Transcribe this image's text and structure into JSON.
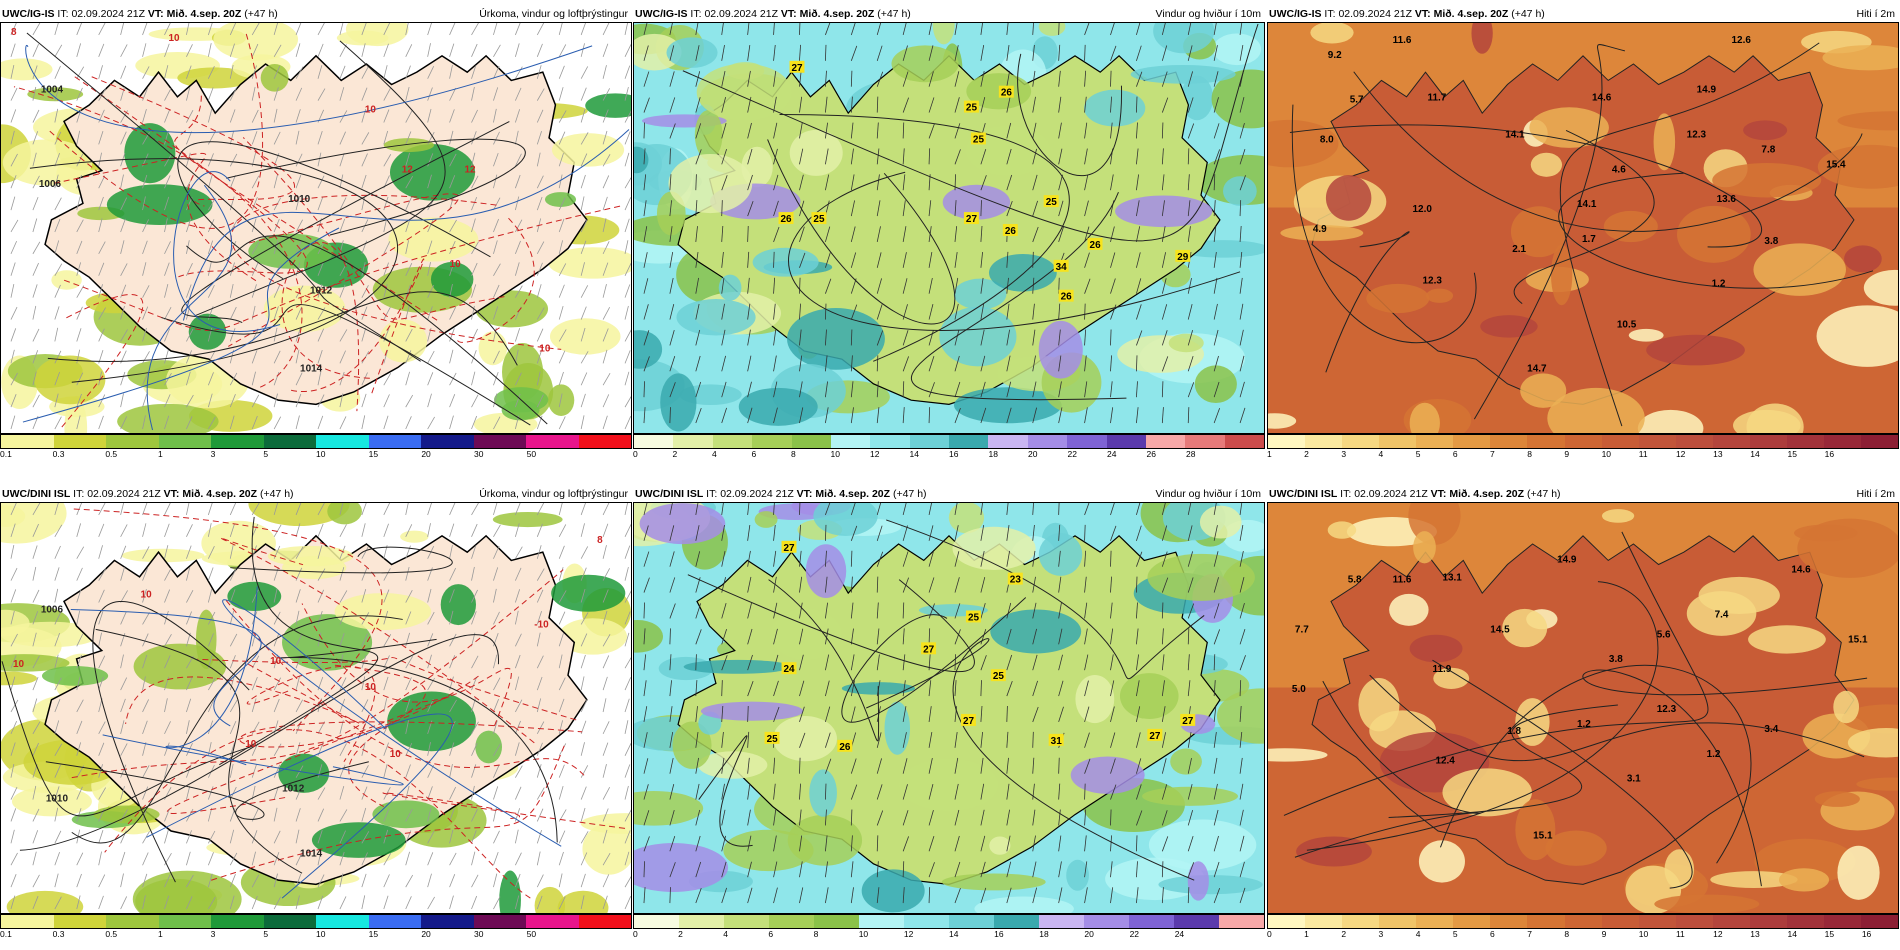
{
  "panels": [
    {
      "model": "UWC/IG-IS",
      "it_label": "IT:",
      "it": "02.09.2024 21Z",
      "vt_label": "VT:",
      "vt": "Mið. 4.sep. 20Z",
      "lead": "(+47 h)",
      "title": "Úrkoma, vindur og loftþrýstingur",
      "type": "precip",
      "legend_ticks": [
        "0.1",
        "0.3",
        "0.5",
        "1",
        "3",
        "5",
        "10",
        "15",
        "20",
        "30",
        "50"
      ],
      "legend_colors": [
        "#f6f59e",
        "#cfd43a",
        "#9ec63d",
        "#6fbf4a",
        "#1f9a39",
        "#0c6b3b",
        "#17e8e0",
        "#3a6cf2",
        "#141a8a",
        "#6d0a55",
        "#e8158c",
        "#f20f1b"
      ],
      "map_labels": [
        {
          "text": "8",
          "color": "#cc2222"
        },
        {
          "text": "10",
          "color": "#cc2222"
        },
        {
          "text": "10",
          "color": "#cc2222"
        },
        {
          "text": "12",
          "color": "#cc2222"
        },
        {
          "text": "12",
          "color": "#cc2222"
        },
        {
          "text": "10",
          "color": "#cc2222"
        },
        {
          "text": "10",
          "color": "#cc2222"
        },
        {
          "text": "1004",
          "color": "#222"
        },
        {
          "text": "1006",
          "color": "#222"
        },
        {
          "text": "1010",
          "color": "#222"
        },
        {
          "text": "1012",
          "color": "#222"
        },
        {
          "text": "1014",
          "color": "#222"
        }
      ]
    },
    {
      "model": "UWC/IG-IS",
      "it_label": "IT:",
      "it": "02.09.2024 21Z",
      "vt_label": "VT:",
      "vt": "Mið. 4.sep. 20Z",
      "lead": "(+47 h)",
      "title": "Vindur og hviður í 10m",
      "type": "wind",
      "legend_ticks": [
        "0",
        "2",
        "4",
        "6",
        "8",
        "10",
        "12",
        "14",
        "16",
        "18",
        "20",
        "22",
        "24",
        "26",
        "28"
      ],
      "legend_colors": [
        "#f7fbe0",
        "#e3f0a8",
        "#c4e07a",
        "#a6cf58",
        "#8bc249",
        "#b3f4f4",
        "#8fe6ea",
        "#6dd0d6",
        "#3aa9ae",
        "#c9b6f2",
        "#a48de6",
        "#7f63d4",
        "#5b3aac",
        "#f7a8a8",
        "#e67a7a",
        "#cc4c4c"
      ],
      "map_labels": [
        {
          "text": "27",
          "color": "#000"
        },
        {
          "text": "25",
          "color": "#000"
        },
        {
          "text": "26",
          "color": "#000"
        },
        {
          "text": "25",
          "color": "#000"
        },
        {
          "text": "26",
          "color": "#000"
        },
        {
          "text": "25",
          "color": "#000"
        },
        {
          "text": "27",
          "color": "#000"
        },
        {
          "text": "26",
          "color": "#000"
        },
        {
          "text": "25",
          "color": "#000"
        },
        {
          "text": "34",
          "color": "#000"
        },
        {
          "text": "26",
          "color": "#000"
        },
        {
          "text": "29",
          "color": "#000"
        },
        {
          "text": "26",
          "color": "#000"
        }
      ]
    },
    {
      "model": "UWC/IG-IS",
      "it_label": "IT:",
      "it": "02.09.2024 21Z",
      "vt_label": "VT:",
      "vt": "Mið. 4.sep. 20Z",
      "lead": "(+47 h)",
      "title": "Hiti í 2m",
      "type": "temp",
      "legend_ticks": [
        "1",
        "2",
        "3",
        "4",
        "5",
        "6",
        "7",
        "8",
        "9",
        "10",
        "11",
        "12",
        "13",
        "14",
        "15",
        "16"
      ],
      "legend_colors": [
        "#fff7c0",
        "#fbe9a0",
        "#f6d882",
        "#f0c468",
        "#ebb055",
        "#e49a44",
        "#dd863a",
        "#d57434",
        "#ce6634",
        "#c85c36",
        "#c2553a",
        "#bc4e3c",
        "#b4453c",
        "#ac3c3c",
        "#a2323a",
        "#982838",
        "#8c1e34"
      ],
      "map_labels": [
        {
          "text": "9.2",
          "color": "#000"
        },
        {
          "text": "11.6",
          "color": "#000"
        },
        {
          "text": "12.6",
          "color": "#000"
        },
        {
          "text": "5.7",
          "color": "#000"
        },
        {
          "text": "11.7",
          "color": "#000"
        },
        {
          "text": "14.9",
          "color": "#000"
        },
        {
          "text": "14.1",
          "color": "#000"
        },
        {
          "text": "14.6",
          "color": "#000"
        },
        {
          "text": "8.0",
          "color": "#000"
        },
        {
          "text": "14.1",
          "color": "#000"
        },
        {
          "text": "12.3",
          "color": "#000"
        },
        {
          "text": "7.8",
          "color": "#000"
        },
        {
          "text": "4.6",
          "color": "#000"
        },
        {
          "text": "15.4",
          "color": "#000"
        },
        {
          "text": "12.0",
          "color": "#000"
        },
        {
          "text": "13.6",
          "color": "#000"
        },
        {
          "text": "4.9",
          "color": "#000"
        },
        {
          "text": "1.7",
          "color": "#000"
        },
        {
          "text": "2.1",
          "color": "#000"
        },
        {
          "text": "3.8",
          "color": "#000"
        },
        {
          "text": "1.2",
          "color": "#000"
        },
        {
          "text": "12.3",
          "color": "#000"
        },
        {
          "text": "10.5",
          "color": "#000"
        },
        {
          "text": "14.7",
          "color": "#000"
        }
      ]
    },
    {
      "model": "UWC/DINI ISL",
      "it_label": "IT:",
      "it": "02.09.2024 21Z",
      "vt_label": "VT:",
      "vt": "Mið. 4.sep. 20Z",
      "lead": "(+47 h)",
      "title": "Úrkoma, vindur og loftþrýstingur",
      "type": "precip",
      "legend_ticks": [
        "0.1",
        "0.3",
        "0.5",
        "1",
        "3",
        "5",
        "10",
        "15",
        "20",
        "30",
        "50"
      ],
      "legend_colors": [
        "#f6f59e",
        "#cfd43a",
        "#9ec63d",
        "#6fbf4a",
        "#1f9a39",
        "#0c6b3b",
        "#17e8e0",
        "#3a6cf2",
        "#141a8a",
        "#6d0a55",
        "#e8158c",
        "#f20f1b"
      ],
      "map_labels": [
        {
          "text": "8",
          "color": "#cc2222"
        },
        {
          "text": "10",
          "color": "#cc2222"
        },
        {
          "text": "10",
          "color": "#cc2222"
        },
        {
          "text": "-10",
          "color": "#cc2222"
        },
        {
          "text": "10",
          "color": "#cc2222"
        },
        {
          "text": "10",
          "color": "#cc2222"
        },
        {
          "text": "10",
          "color": "#cc2222"
        },
        {
          "text": "10",
          "color": "#cc2222"
        },
        {
          "text": "1006",
          "color": "#222"
        },
        {
          "text": "1010",
          "color": "#222"
        },
        {
          "text": "1012",
          "color": "#222"
        },
        {
          "text": "1014",
          "color": "#222"
        }
      ]
    },
    {
      "model": "UWC/DINI ISL",
      "it_label": "IT:",
      "it": "02.09.2024 21Z",
      "vt_label": "VT:",
      "vt": "Mið. 4.sep. 20Z",
      "lead": "(+47 h)",
      "title": "Vindur og hviður í 10m",
      "type": "wind",
      "legend_ticks": [
        "0",
        "2",
        "4",
        "6",
        "8",
        "10",
        "12",
        "14",
        "16",
        "18",
        "20",
        "22",
        "24"
      ],
      "legend_colors": [
        "#f7fbe0",
        "#e3f0a8",
        "#c4e07a",
        "#a6cf58",
        "#8bc249",
        "#b3f4f4",
        "#8fe6ea",
        "#6dd0d6",
        "#3aa9ae",
        "#c9b6f2",
        "#a48de6",
        "#7f63d4",
        "#5b3aac",
        "#f7a8a8"
      ],
      "map_labels": [
        {
          "text": "27",
          "color": "#000"
        },
        {
          "text": "23",
          "color": "#000"
        },
        {
          "text": "25",
          "color": "#000"
        },
        {
          "text": "24",
          "color": "#000"
        },
        {
          "text": "27",
          "color": "#000"
        },
        {
          "text": "25",
          "color": "#000"
        },
        {
          "text": "27",
          "color": "#000"
        },
        {
          "text": "25",
          "color": "#000"
        },
        {
          "text": "26",
          "color": "#000"
        },
        {
          "text": "31",
          "color": "#000"
        },
        {
          "text": "27",
          "color": "#000"
        },
        {
          "text": "27",
          "color": "#000"
        }
      ]
    },
    {
      "model": "UWC/DINI ISL",
      "it_label": "IT:",
      "it": "02.09.2024 21Z",
      "vt_label": "VT:",
      "vt": "Mið. 4.sep. 20Z",
      "lead": "(+47 h)",
      "title": "Hiti í 2m",
      "type": "temp",
      "legend_ticks": [
        "0",
        "1",
        "2",
        "3",
        "4",
        "5",
        "6",
        "7",
        "8",
        "9",
        "10",
        "11",
        "12",
        "13",
        "14",
        "15",
        "16"
      ],
      "legend_colors": [
        "#fff7c0",
        "#fbe9a0",
        "#f6d882",
        "#f0c468",
        "#ebb055",
        "#e49a44",
        "#dd863a",
        "#d57434",
        "#ce6634",
        "#c85c36",
        "#c2553a",
        "#bc4e3c",
        "#b4453c",
        "#ac3c3c",
        "#a2323a",
        "#982838",
        "#8c1e34"
      ],
      "map_labels": [
        {
          "text": "5.8",
          "color": "#000"
        },
        {
          "text": "11.6",
          "color": "#000"
        },
        {
          "text": "13.1",
          "color": "#000"
        },
        {
          "text": "14.9",
          "color": "#000"
        },
        {
          "text": "14.6",
          "color": "#000"
        },
        {
          "text": "7.7",
          "color": "#000"
        },
        {
          "text": "7.4",
          "color": "#000"
        },
        {
          "text": "14.5",
          "color": "#000"
        },
        {
          "text": "5.6",
          "color": "#000"
        },
        {
          "text": "15.1",
          "color": "#000"
        },
        {
          "text": "3.8",
          "color": "#000"
        },
        {
          "text": "11.9",
          "color": "#000"
        },
        {
          "text": "5.0",
          "color": "#000"
        },
        {
          "text": "12.3",
          "color": "#000"
        },
        {
          "text": "1.8",
          "color": "#000"
        },
        {
          "text": "1.2",
          "color": "#000"
        },
        {
          "text": "3.4",
          "color": "#000"
        },
        {
          "text": "1.2",
          "color": "#000"
        },
        {
          "text": "12.4",
          "color": "#000"
        },
        {
          "text": "3.1",
          "color": "#000"
        },
        {
          "text": "15.1",
          "color": "#000"
        }
      ]
    }
  ]
}
